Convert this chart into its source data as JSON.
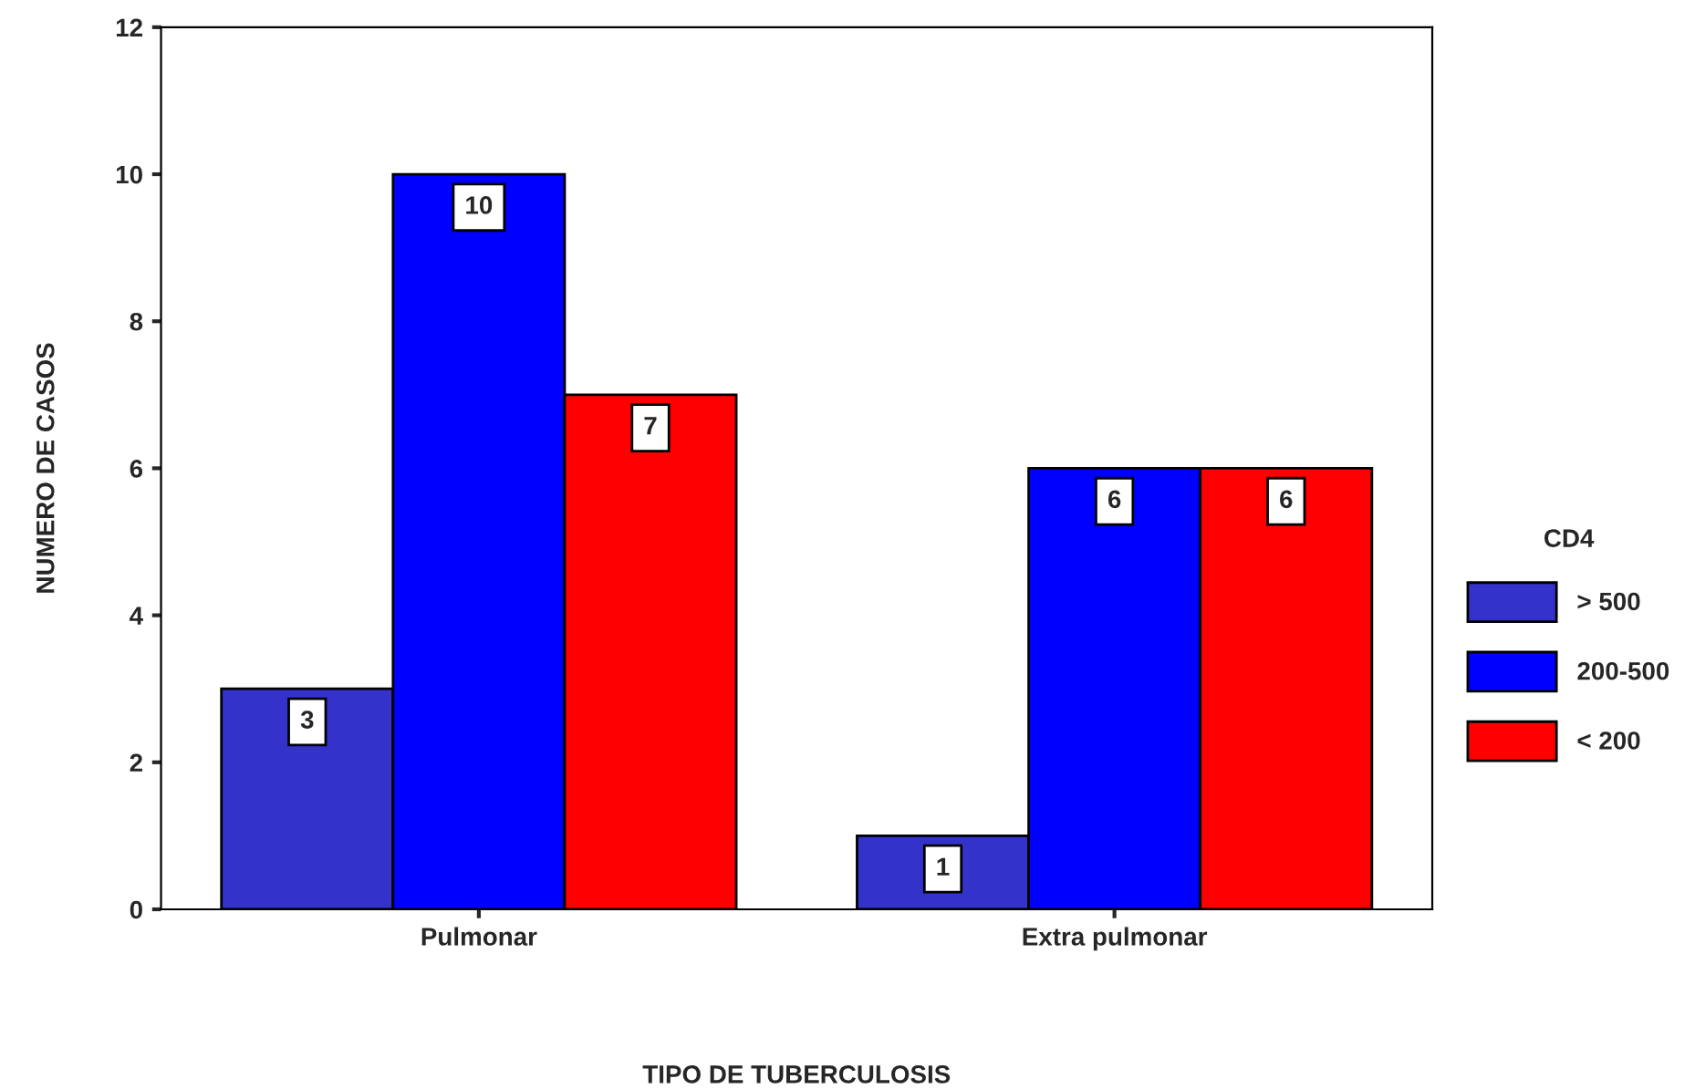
{
  "chart_data": {
    "type": "bar",
    "xlabel": "TIPO DE TUBERCULOSIS",
    "ylabel": "NUMERO DE CASOS",
    "legend_title": "CD4",
    "categories": [
      "Pulmonar",
      "Extra pulmonar"
    ],
    "series": [
      {
        "name": "> 500",
        "color": "#3333cc",
        "values": [
          3,
          1
        ]
      },
      {
        "name": "200-500",
        "color": "#0000ff",
        "values": [
          10,
          6
        ]
      },
      {
        "name": "< 200",
        "color": "#ff0000",
        "values": [
          7,
          6
        ]
      }
    ],
    "ylim": [
      0,
      12
    ],
    "yticks": [
      0,
      2,
      4,
      6,
      8,
      10,
      12
    ],
    "data_labels": true,
    "grid": false,
    "legend": "right"
  }
}
